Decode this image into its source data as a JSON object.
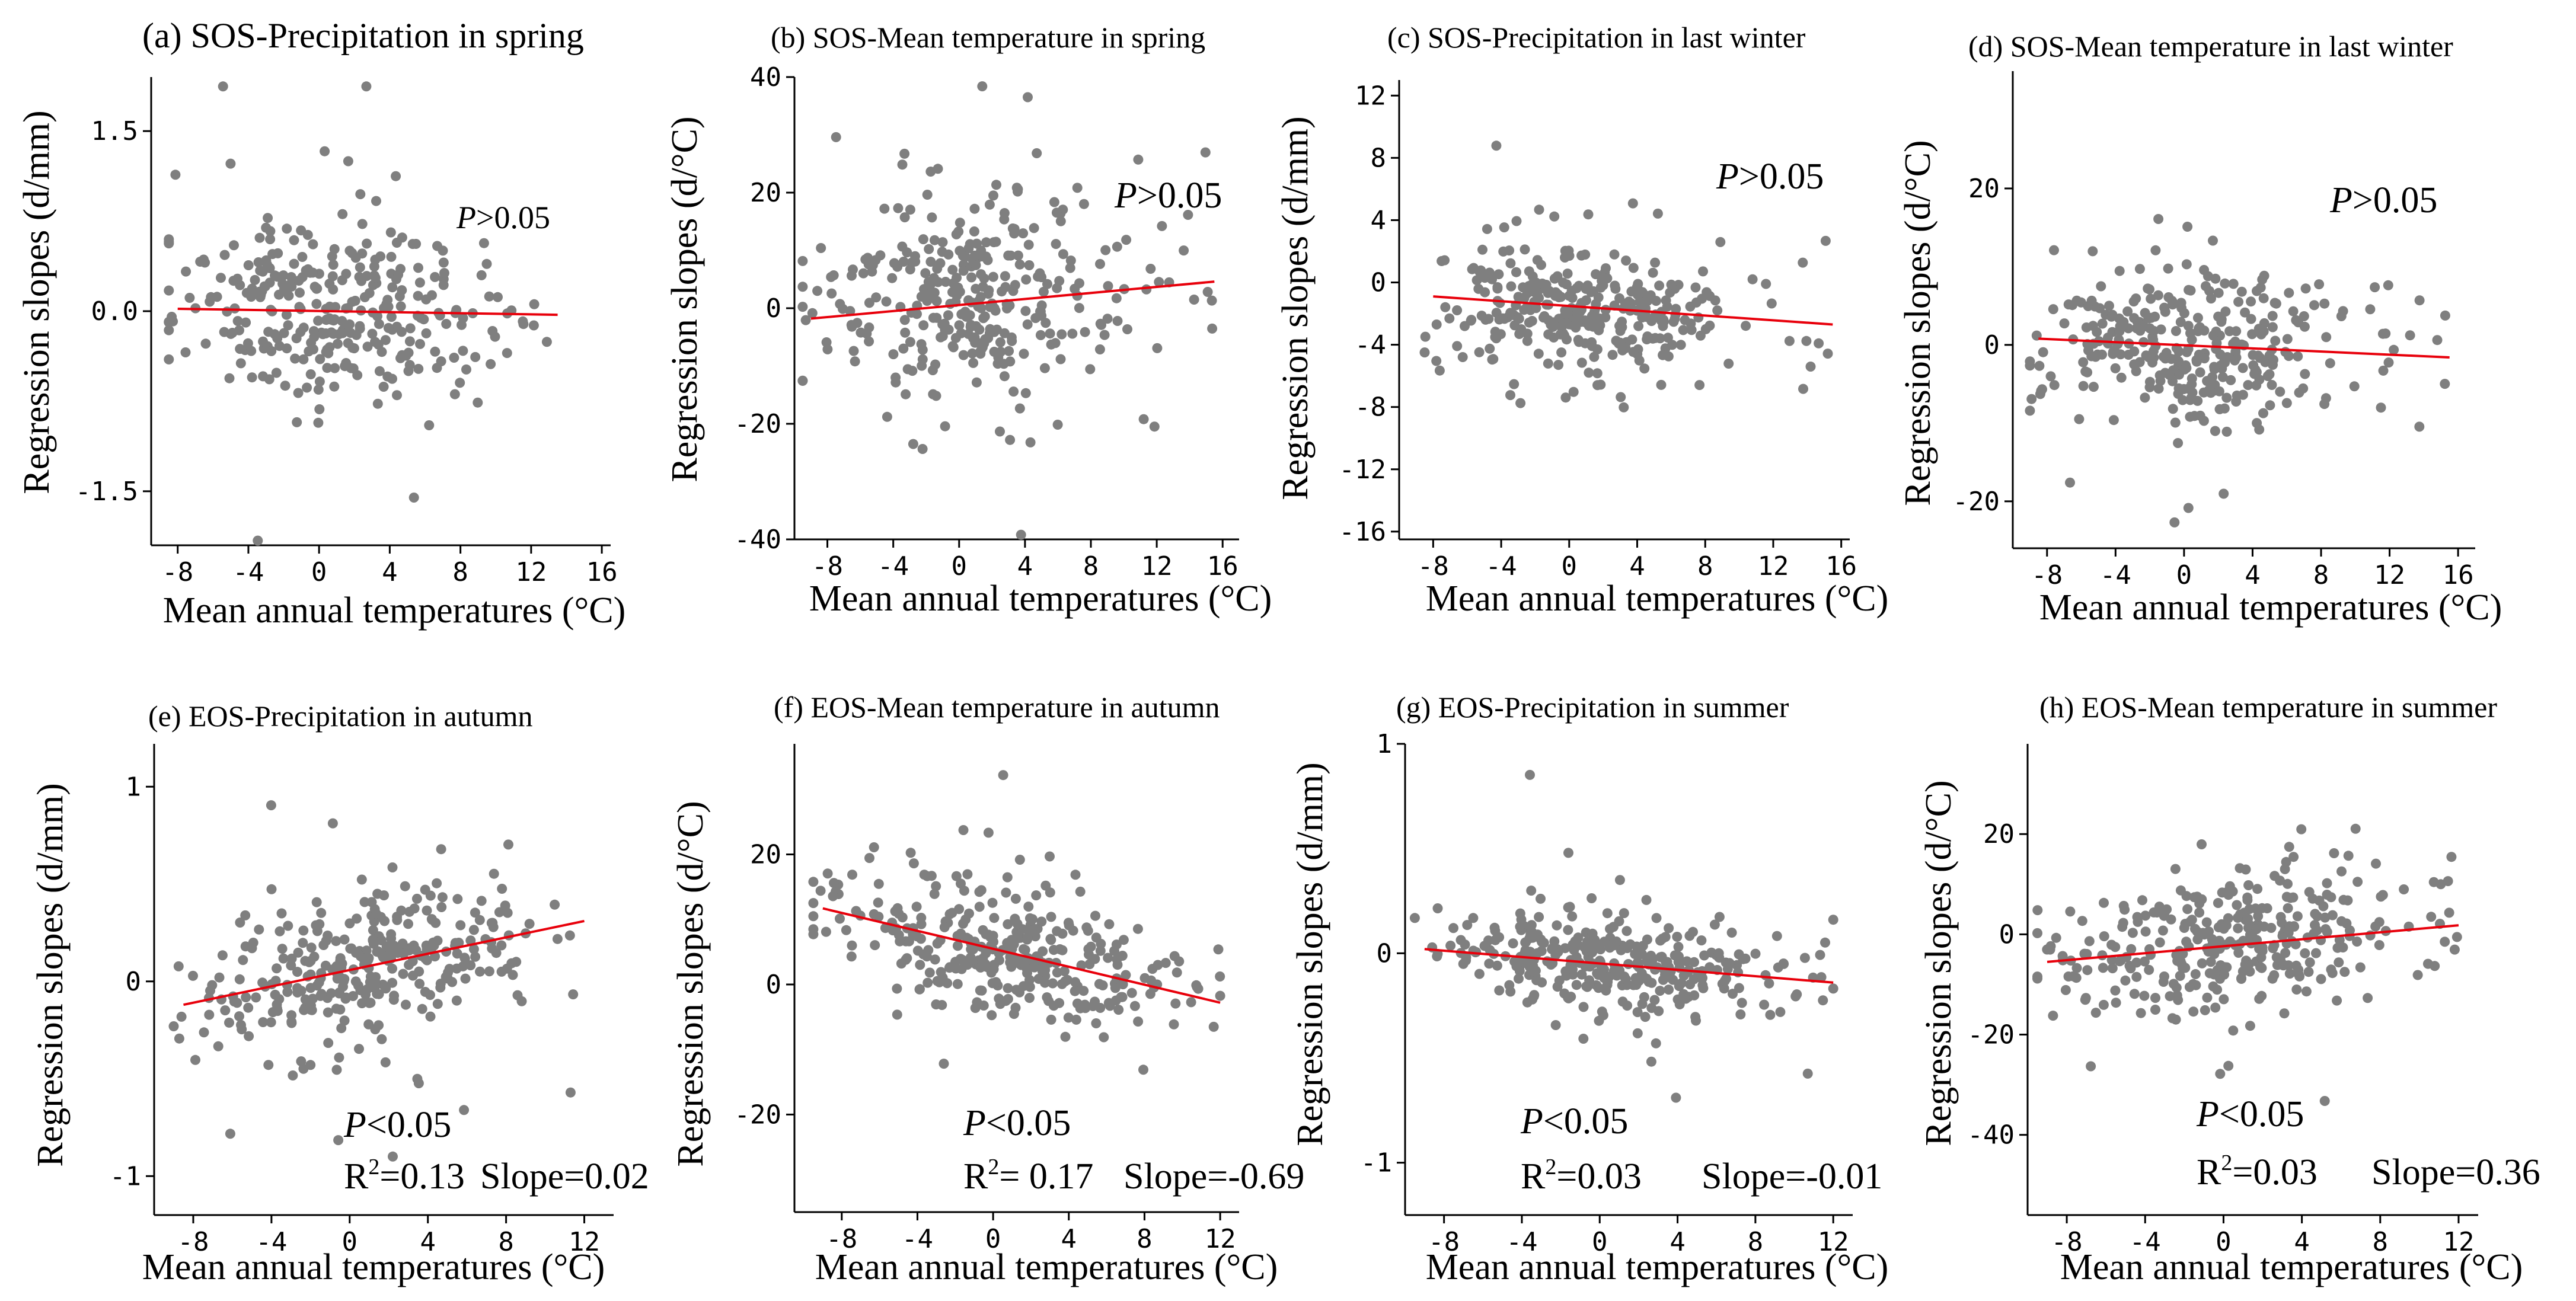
{
  "figure": {
    "panels": [
      {
        "id": "a",
        "title": "(a) SOS-Precipitation in spring",
        "stat_p": "P>0.05",
        "ylabel": "Regression slopes (d/mm)",
        "xlabel": "Mean annual temperatures (°C)"
      },
      {
        "id": "b",
        "title": "(b) SOS-Mean temperature in spring",
        "stat_p": "P>0.05",
        "ylabel": "Regression slopes (d/°C)",
        "xlabel": "Mean annual temperatures (°C)"
      },
      {
        "id": "c",
        "title": "(c) SOS-Precipitation in last winter",
        "stat_p": "P>0.05",
        "ylabel": "Regression slopes (d/mm)",
        "xlabel": "Mean annual temperatures (°C)"
      },
      {
        "id": "d",
        "title": "(d) SOS-Mean temperature  in last winter",
        "stat_p": "P>0.05",
        "ylabel": "Regression slopes (d/°C)",
        "xlabel": "Mean annual temperatures (°C)"
      },
      {
        "id": "e",
        "title": "(e) EOS-Precipitation in autumn",
        "stat_p": "P<0.05",
        "stat_r2": "R2=0.13",
        "stat_slope": "Slope=0.02",
        "ylabel": "Regression slopes (d/mm)",
        "xlabel": "Mean annual temperatures (°C)"
      },
      {
        "id": "f",
        "title": "(f) EOS-Mean temperature in autumn",
        "stat_p": "P<0.05",
        "stat_r2": "R2= 0.17",
        "stat_slope": "Slope=-0.69",
        "ylabel": "Regression slopes (d/°C)",
        "xlabel": "Mean annual temperatures (°C)"
      },
      {
        "id": "g",
        "title": "(g) EOS-Precipitation in summer",
        "stat_p": "P<0.05",
        "stat_r2": "R2=0.03",
        "stat_slope": "Slope=-0.01",
        "ylabel": "Regression slopes (d/mm)",
        "xlabel": "Mean annual temperatures (°C)"
      },
      {
        "id": "h",
        "title": "(h) EOS-Mean temperature  in summer",
        "stat_p": "P<0.05",
        "stat_r2": "R2=0.03",
        "stat_slope": "Slope=0.36",
        "ylabel": "Regression slopes (d/°C)",
        "xlabel": "Mean annual temperatures (°C)"
      }
    ]
  },
  "chart_data": [
    {
      "type": "scatter",
      "title": "(a) SOS-Precipitation in spring",
      "xlabel": "Mean annual temperatures (°C)",
      "ylabel": "Regression slopes (d/mm)",
      "xlim": [
        -9.5,
        16.5
      ],
      "ylim": [
        -1.95,
        1.95
      ],
      "xticks": [
        -8,
        -4,
        0,
        4,
        8,
        12,
        16
      ],
      "yticks": [
        -1.5,
        0,
        1.5
      ],
      "ytick_labels": [
        "-1.5",
        "0.0",
        "1.5"
      ],
      "fit_line": {
        "x": [
          -8,
          13.5
        ],
        "y": [
          0.02,
          -0.03
        ]
      },
      "annotation": "P>0.05",
      "n_points": 320,
      "seed": 11,
      "point_color": "#7f7f7f",
      "line_color": "#e8000b"
    },
    {
      "type": "scatter",
      "title": "(b) SOS-Mean temperature in spring",
      "xlabel": "Mean annual temperatures (°C)",
      "ylabel": "Regression slopes (d/°C)",
      "xlim": [
        -10,
        17
      ],
      "ylim": [
        -40,
        40
      ],
      "xticks": [
        -8,
        -4,
        0,
        4,
        8,
        12,
        16
      ],
      "yticks": [
        -40,
        -20,
        0,
        20,
        40
      ],
      "ytick_labels": [
        "-40",
        "-20",
        "0",
        "20",
        "40"
      ],
      "fit_line": {
        "x": [
          -9,
          15.5
        ],
        "y": [
          -1.8,
          4.6
        ]
      },
      "annotation": "P>0.05",
      "n_points": 330,
      "seed": 23,
      "point_color": "#7f7f7f",
      "line_color": "#e8000b"
    },
    {
      "type": "scatter",
      "title": "(c) SOS-Precipitation in last winter",
      "xlabel": "Mean annual temperatures (°C)",
      "ylabel": "Regression slopes (d/mm)",
      "xlim": [
        -10,
        16.5
      ],
      "ylim": [
        -16.5,
        13
      ],
      "xticks": [
        -8,
        -4,
        0,
        4,
        8,
        12,
        16
      ],
      "yticks": [
        -16,
        -12,
        -8,
        -4,
        0,
        4,
        8,
        12
      ],
      "ytick_labels": [
        "-16",
        "-12",
        "-8",
        "-4",
        "0",
        "4",
        "8",
        "12"
      ],
      "fit_line": {
        "x": [
          -8,
          15.5
        ],
        "y": [
          -0.9,
          -2.7
        ]
      },
      "annotation": "P>0.05",
      "n_points": 330,
      "seed": 37,
      "point_color": "#7f7f7f",
      "line_color": "#e8000b"
    },
    {
      "type": "scatter",
      "title": "(d) SOS-Mean temperature  in last winter",
      "xlabel": "Mean annual temperatures (°C)",
      "ylabel": "Regression slopes (d/°C)",
      "xlim": [
        -10,
        17
      ],
      "ylim": [
        -26,
        35
      ],
      "xticks": [
        -8,
        -4,
        0,
        4,
        8,
        12,
        16
      ],
      "yticks": [
        -20,
        0,
        20
      ],
      "ytick_labels": [
        "-20",
        "0",
        "20"
      ],
      "fit_line": {
        "x": [
          -8.5,
          15.5
        ],
        "y": [
          0.8,
          -1.6
        ]
      },
      "annotation": "P>0.05",
      "n_points": 330,
      "seed": 41,
      "point_color": "#7f7f7f",
      "line_color": "#e8000b"
    },
    {
      "type": "scatter",
      "title": "(e) EOS-Precipitation in autumn",
      "xlabel": "Mean annual temperatures (°C)",
      "ylabel": "Regression slopes (d/mm)",
      "xlim": [
        -10,
        13.5
      ],
      "ylim": [
        -1.2,
        1.22
      ],
      "xticks": [
        -8,
        -4,
        0,
        4,
        8,
        12
      ],
      "yticks": [
        -1,
        0,
        1
      ],
      "ytick_labels": [
        "-1",
        "0",
        "1"
      ],
      "fit_line": {
        "x": [
          -8.5,
          12
        ],
        "y": [
          -0.12,
          0.31
        ]
      },
      "annotation": "P<0.05",
      "n_points": 330,
      "seed": 53,
      "point_color": "#7f7f7f",
      "line_color": "#e8000b"
    },
    {
      "type": "scatter",
      "title": "(f) EOS-Mean temperature in autumn",
      "xlabel": "Mean annual temperatures (°C)",
      "ylabel": "Regression slopes (d/°C)",
      "xlim": [
        -10.5,
        13
      ],
      "ylim": [
        -35,
        37
      ],
      "xticks": [
        -8,
        -4,
        0,
        4,
        8,
        12
      ],
      "yticks": [
        -20,
        0,
        20
      ],
      "ytick_labels": [
        "-20",
        "0",
        "20"
      ],
      "fit_line": {
        "x": [
          -9,
          12
        ],
        "y": [
          11.7,
          -2.8
        ]
      },
      "annotation": "P<0.05",
      "n_points": 330,
      "seed": 67,
      "point_color": "#7f7f7f",
      "line_color": "#e8000b"
    },
    {
      "type": "scatter",
      "title": "(g) EOS-Precipitation in summer",
      "xlabel": "Mean annual temperatures (°C)",
      "ylabel": "Regression slopes (d/mm)",
      "xlim": [
        -10,
        13
      ],
      "ylim": [
        -1.25,
        1.0
      ],
      "xticks": [
        -8,
        -4,
        0,
        4,
        8,
        12
      ],
      "yticks": [
        -1,
        0,
        1
      ],
      "ytick_labels": [
        "-1",
        "0",
        "1"
      ],
      "fit_line": {
        "x": [
          -9,
          12
        ],
        "y": [
          0.02,
          -0.14
        ]
      },
      "annotation": "P<0.05",
      "n_points": 330,
      "seed": 79,
      "point_color": "#7f7f7f",
      "line_color": "#e8000b"
    },
    {
      "type": "scatter",
      "title": "(h) EOS-Mean temperature  in summer",
      "xlabel": "Mean annual temperatures (°C)",
      "ylabel": "Regression slopes (d/°C)",
      "xlim": [
        -10,
        13
      ],
      "ylim": [
        -56,
        38
      ],
      "xticks": [
        -8,
        -4,
        0,
        4,
        8,
        12
      ],
      "yticks": [
        -40,
        -20,
        0,
        20
      ],
      "ytick_labels": [
        "-40",
        "-20",
        "0",
        "20"
      ],
      "fit_line": {
        "x": [
          -9,
          12
        ],
        "y": [
          -5.5,
          1.8
        ]
      },
      "annotation": "P<0.05",
      "n_points": 330,
      "seed": 97,
      "point_color": "#7f7f7f",
      "line_color": "#e8000b"
    }
  ]
}
